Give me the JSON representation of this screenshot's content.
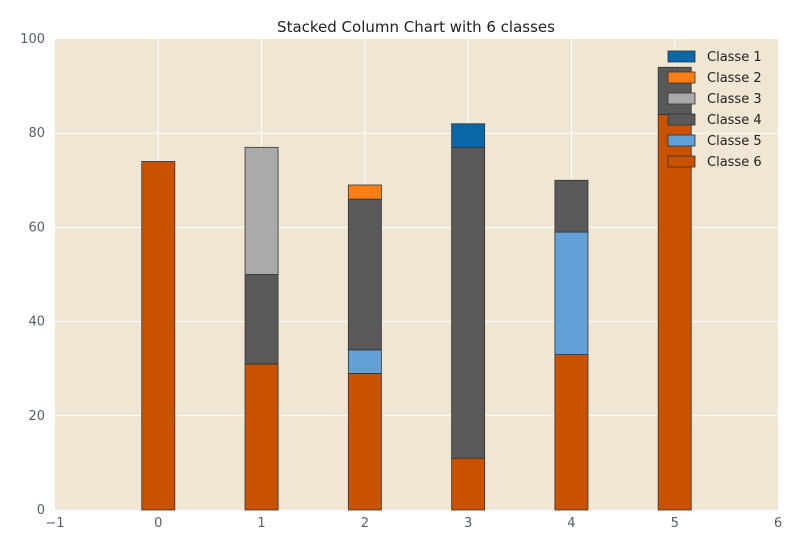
{
  "chart_data": {
    "type": "bar",
    "stacked": true,
    "title": "Stacked Column Chart with 6 classes",
    "xlabel": "",
    "ylabel": "",
    "xlim": [
      -1,
      6
    ],
    "ylim": [
      0,
      100
    ],
    "x_ticks": [
      "−1",
      "0",
      "1",
      "2",
      "3",
      "4",
      "5",
      "6"
    ],
    "y_ticks": [
      "0",
      "20",
      "40",
      "60",
      "80",
      "100"
    ],
    "categories": [
      0,
      1,
      2,
      3,
      4,
      5
    ],
    "grid": true,
    "legend": "top-right",
    "background": "#efe6d3",
    "series": [
      {
        "name": "Classe 1",
        "color": "#0868a8",
        "values": [
          0,
          0,
          0,
          5,
          0,
          0
        ]
      },
      {
        "name": "Classe 2",
        "color": "#fd7e14",
        "values": [
          0,
          0,
          3,
          0,
          0,
          0
        ]
      },
      {
        "name": "Classe 3",
        "color": "#aaaaaa",
        "values": [
          0,
          27,
          0,
          0,
          0,
          0
        ]
      },
      {
        "name": "Classe 4",
        "color": "#595959",
        "values": [
          0,
          19,
          32,
          66,
          11,
          10
        ]
      },
      {
        "name": "Classe 5",
        "color": "#62a0d6",
        "values": [
          0,
          0,
          5,
          0,
          26,
          0
        ]
      },
      {
        "name": "Classe 6",
        "color": "#c85200",
        "values": [
          74,
          31,
          29,
          11,
          33,
          84
        ]
      }
    ]
  }
}
